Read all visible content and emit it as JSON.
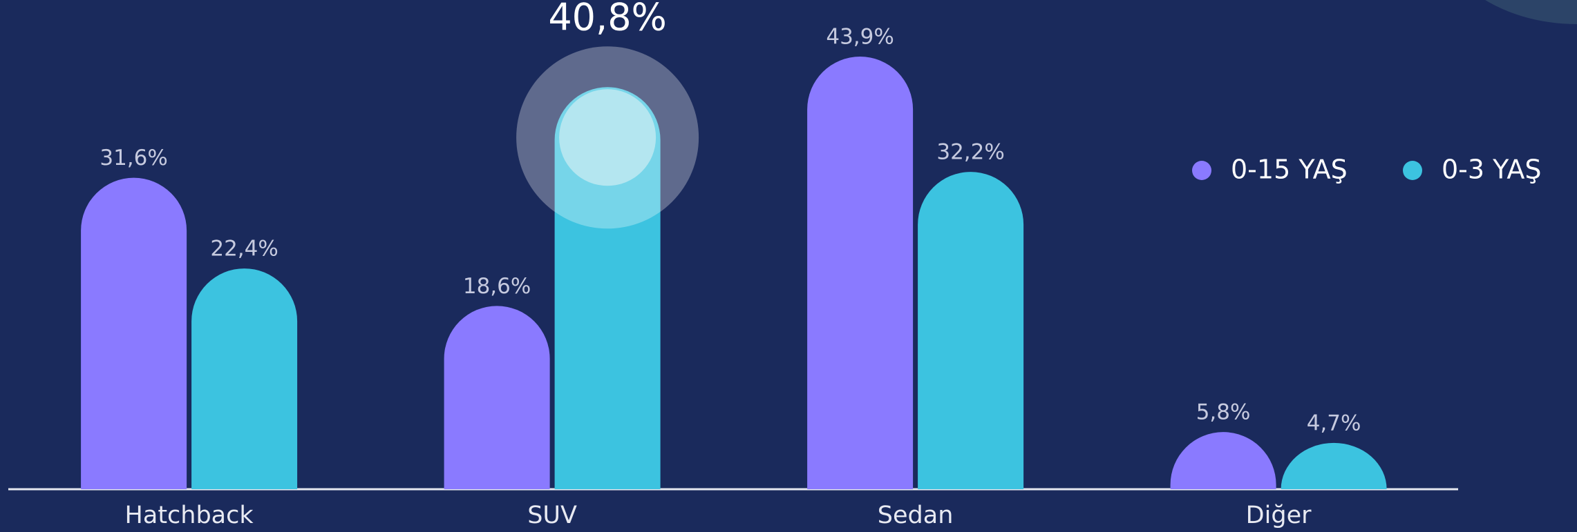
{
  "chart_data": {
    "type": "bar",
    "categories": [
      "Hatchback",
      "SUV",
      "Sedan",
      "Diğer"
    ],
    "series": [
      {
        "name": "0-15 YAŞ",
        "color": "#8a7aff",
        "values": [
          31.6,
          18.6,
          43.9,
          5.8
        ],
        "value_labels": [
          "31,6%",
          "18,6%",
          "43,9%",
          "5,8%"
        ]
      },
      {
        "name": "0-3 YAŞ",
        "color": "#3cc3e0",
        "values": [
          22.4,
          40.8,
          32.2,
          4.7
        ],
        "value_labels": [
          "22,4%",
          "40,8%",
          "32,2%",
          "4,7%"
        ]
      }
    ],
    "legend": "right"
  }
}
